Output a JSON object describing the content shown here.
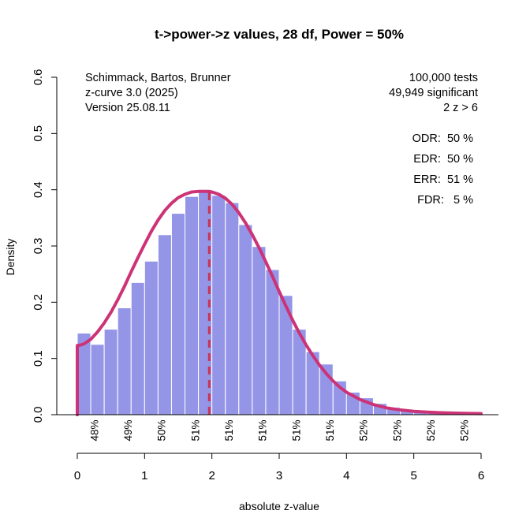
{
  "chart_data": {
    "type": "bar",
    "title": "t->power->z values, 28 df, Power = 50%",
    "xlabel": "absolute z-value",
    "ylabel": "Density",
    "xlim": [
      0,
      6
    ],
    "ylim": [
      0,
      0.6
    ],
    "x_ticks": [
      "0",
      "1",
      "2",
      "3",
      "4",
      "5",
      "6"
    ],
    "y_ticks": [
      "0.0",
      "0.1",
      "0.2",
      "0.3",
      "0.4",
      "0.5",
      "0.6"
    ],
    "bin_width": 0.2,
    "bars": [
      0.145,
      0.125,
      0.152,
      0.19,
      0.235,
      0.273,
      0.32,
      0.358,
      0.388,
      0.398,
      0.39,
      0.377,
      0.338,
      0.299,
      0.258,
      0.212,
      0.152,
      0.112,
      0.09,
      0.06,
      0.04,
      0.03,
      0.02,
      0.013,
      0.009,
      0.006,
      0.004,
      0.003,
      0.002,
      0.0015
    ],
    "curve": {
      "x": [
        0.0,
        0.05,
        0.1,
        0.2,
        0.3,
        0.4,
        0.5,
        0.6,
        0.7,
        0.8,
        0.9,
        1.0,
        1.1,
        1.2,
        1.3,
        1.4,
        1.5,
        1.6,
        1.7,
        1.8,
        1.9,
        1.96,
        2.0,
        2.1,
        2.2,
        2.3,
        2.4,
        2.5,
        2.6,
        2.7,
        2.8,
        2.9,
        3.0,
        3.1,
        3.2,
        3.3,
        3.4,
        3.5,
        3.6,
        3.7,
        3.8,
        3.9,
        4.0,
        4.2,
        4.4,
        4.6,
        4.8,
        5.0,
        5.2,
        5.4,
        5.6,
        5.8,
        6.0
      ],
      "y": [
        0.123,
        0.124,
        0.126,
        0.134,
        0.147,
        0.163,
        0.182,
        0.204,
        0.228,
        0.254,
        0.279,
        0.303,
        0.326,
        0.346,
        0.363,
        0.376,
        0.386,
        0.392,
        0.396,
        0.397,
        0.397,
        0.397,
        0.396,
        0.392,
        0.385,
        0.374,
        0.359,
        0.341,
        0.32,
        0.297,
        0.272,
        0.246,
        0.219,
        0.193,
        0.168,
        0.145,
        0.124,
        0.105,
        0.088,
        0.073,
        0.06,
        0.049,
        0.04,
        0.027,
        0.018,
        0.012,
        0.0085,
        0.006,
        0.0045,
        0.0035,
        0.0028,
        0.0023,
        0.002
      ]
    },
    "vline_x": 1.96,
    "power_labels": {
      "x": [
        0.25,
        0.75,
        1.25,
        1.75,
        2.25,
        2.75,
        3.25,
        3.75,
        4.25,
        4.75,
        5.25,
        5.75
      ],
      "text": [
        "48%",
        "49%",
        "50%",
        "51%",
        "51%",
        "51%",
        "51%",
        "51%",
        "52%",
        "52%",
        "52%",
        "52%"
      ]
    },
    "info_left": [
      "Schimmack, Bartos, Brunner",
      "z-curve 3.0 (2025)",
      "Version 25.08.11"
    ],
    "info_right": [
      "100,000 tests",
      "49,949 significant",
      "2 z > 6"
    ],
    "stats": [
      "ODR:  50 %",
      "EDR:  50 %",
      "ERR:  51 %",
      "FDR:   5 %"
    ],
    "colors": {
      "bar_fill": "#9595e8",
      "bar_stroke": "#ffffff",
      "curve": "#cc3377",
      "vline": "#cc3355"
    },
    "grid": false,
    "legend": "none"
  }
}
